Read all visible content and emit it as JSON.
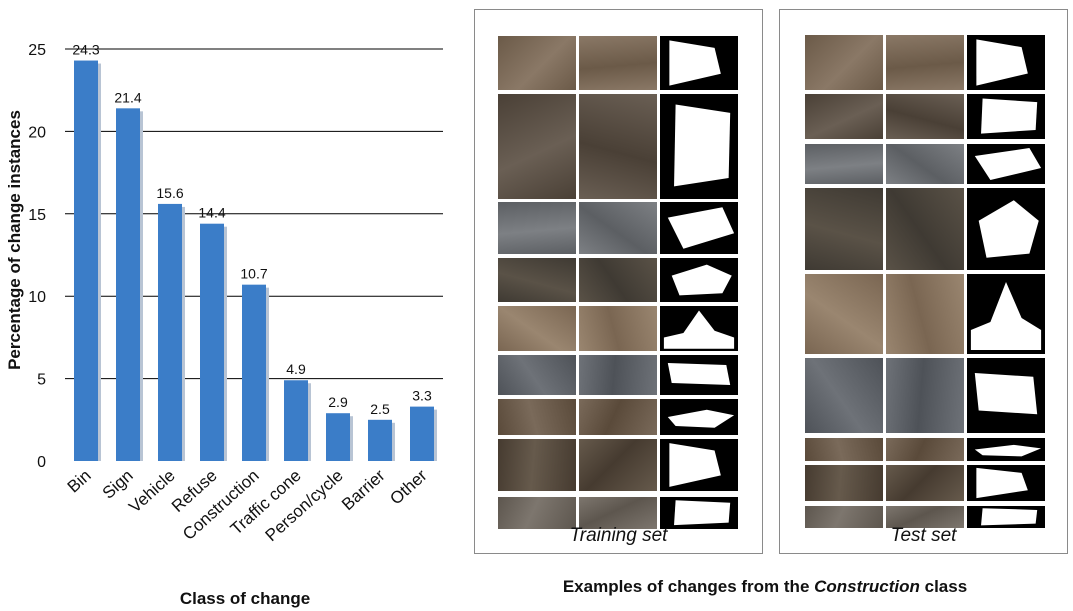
{
  "chart_data": {
    "type": "bar",
    "xlabel": "Class of change",
    "ylabel": "Percentage of change instances",
    "categories": [
      "Bin",
      "Sign",
      "Vehicle",
      "Refuse",
      "Construction",
      "Traffic cone",
      "Person/cycle",
      "Barrier",
      "Other"
    ],
    "values": [
      24.3,
      21.4,
      15.6,
      14.4,
      10.7,
      4.9,
      2.9,
      2.5,
      3.3
    ],
    "value_labels": [
      "24.3",
      "21.4",
      "15.6",
      "14.4",
      "10.7",
      "4.9",
      "2.9",
      "2.5",
      "3.3"
    ],
    "ylim": [
      0,
      25
    ],
    "yticks": [
      0,
      5,
      10,
      15,
      20,
      25
    ],
    "grid": true,
    "legend": "none",
    "bar_color": "#3b7dc8"
  },
  "figure": {
    "training_label": "Training set",
    "test_label": "Test set",
    "caption_prefix": "Examples of changes from the ",
    "caption_em": "Construction",
    "caption_suffix": " class"
  }
}
